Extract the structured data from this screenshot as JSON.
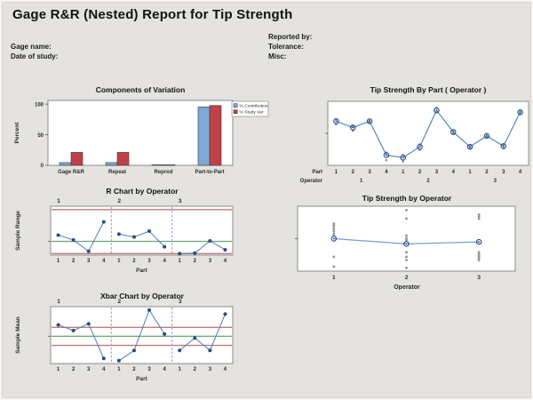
{
  "header": {
    "title": "Gage R&R (Nested) Report for Tip Strength",
    "gage_name_label": "Gage name:",
    "date_of_study_label": "Date of study:",
    "reported_by_label": "Reported by:",
    "tolerance_label": "Tolerance:",
    "misc_label": "Misc:"
  },
  "colors": {
    "page_bg": "#e5e3e0",
    "plot_bg": "#ffffff",
    "plot_border": "#8c8c8c",
    "text": "#2b2b2b",
    "title_text": "#111111",
    "bar_blue": "#7FA7D7",
    "bar_red": "#BE4145",
    "bar_edge": "#3a3a3a",
    "line_blue": "#4A7EBB",
    "line_blue_light": "#6FA0D4",
    "point_navy": "#274B84",
    "gray_dot": "#949494",
    "limit_red": "#C47A7A",
    "center_green": "#79A879",
    "divider_purple": "#A791D6"
  },
  "chart_data": [
    {
      "id": "components-of-variation",
      "type": "bar",
      "title": "Components of Variation",
      "ylabel": "Percent",
      "yticks": [
        0,
        50,
        100
      ],
      "ylim": [
        0,
        106
      ],
      "grid": false,
      "legend_position": "right",
      "categories": [
        "Gage R&R",
        "Repeat",
        "Reprod",
        "Part-to-Part"
      ],
      "series": [
        {
          "name": "% Contribution",
          "color": "#7FA7D7",
          "values": [
            4.5,
            4.5,
            0.3,
            95.5
          ]
        },
        {
          "name": "% Study Var",
          "color": "#BE4145",
          "values": [
            21.2,
            21.2,
            0.5,
            97.7
          ]
        }
      ]
    },
    {
      "id": "tip-strength-by-part",
      "type": "line",
      "title": "Tip Strength By Part ( Operator )",
      "row_labels": {
        "part": "Part",
        "operator": "Operator"
      },
      "part_ticks": [
        "1",
        "2",
        "3",
        "4",
        "1",
        "2",
        "3",
        "4",
        "1",
        "2",
        "3",
        "4"
      ],
      "operator_groups": [
        "1",
        "2",
        "3"
      ],
      "means_norm": [
        0.69,
        0.59,
        0.69,
        0.16,
        0.12,
        0.29,
        0.86,
        0.52,
        0.29,
        0.46,
        0.3,
        0.83
      ],
      "measurements_norm": [
        [
          0.72,
          0.64
        ],
        [
          0.62,
          0.54
        ],
        [
          0.7,
          0.67
        ],
        [
          0.2,
          0.08
        ],
        [
          0.16,
          0.06
        ],
        [
          0.33,
          0.24
        ],
        [
          0.9,
          0.83
        ],
        [
          0.54,
          0.49
        ],
        [
          0.3,
          0.27
        ],
        [
          0.47,
          0.44
        ],
        [
          0.33,
          0.27
        ],
        [
          0.84,
          0.81
        ]
      ]
    },
    {
      "id": "r-chart",
      "type": "control",
      "title": "R Chart by Operator",
      "ylabel": "Sample Range",
      "xlabel": "Part",
      "operators": [
        "1",
        "2",
        "3"
      ],
      "part_ticks": [
        "1",
        "2",
        "3",
        "4"
      ],
      "ucl_norm": 0.93,
      "center_norm": 0.28,
      "lcl_norm": 0.03,
      "values_norm": [
        0.41,
        0.31,
        0.08,
        0.68,
        0.43,
        0.37,
        0.49,
        0.17,
        0.03,
        0.04,
        0.29,
        0.11
      ]
    },
    {
      "id": "tip-strength-by-operator",
      "type": "scatter",
      "title": "Tip Strength by Operator",
      "xlabel": "Operator",
      "categories": [
        "1",
        "2",
        "3"
      ],
      "means_norm": [
        0.5,
        0.42,
        0.45
      ],
      "points_norm": [
        [
          0.73,
          0.7,
          0.66,
          0.62,
          0.58,
          0.55,
          0.22,
          0.07
        ],
        [
          0.94,
          0.81,
          0.55,
          0.51,
          0.48,
          0.29,
          0.22,
          0.17,
          0.05
        ],
        [
          0.87,
          0.84,
          0.81,
          0.29,
          0.26,
          0.23,
          0.2,
          0.17
        ]
      ]
    },
    {
      "id": "xbar-chart",
      "type": "control",
      "title": "Xbar Chart by Operator",
      "ylabel": "Sample Mean",
      "xlabel": "Part",
      "operators": [
        "1",
        "2",
        "3"
      ],
      "part_ticks": [
        "1",
        "2",
        "3",
        "4"
      ],
      "ucl_norm": 0.635,
      "center_norm": 0.48,
      "lcl_norm": 0.32,
      "values_norm": [
        0.68,
        0.58,
        0.7,
        0.09,
        0.05,
        0.23,
        0.94,
        0.52,
        0.23,
        0.45,
        0.23,
        0.87
      ]
    }
  ]
}
